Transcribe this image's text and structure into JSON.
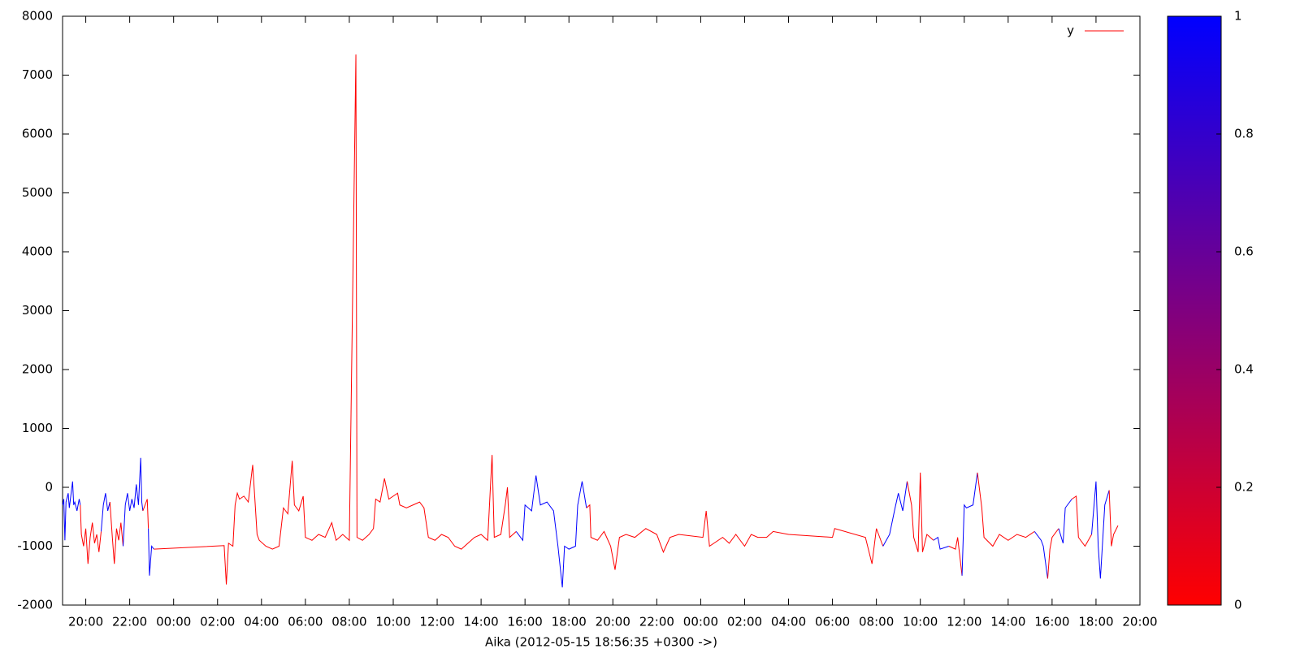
{
  "chart_data": {
    "type": "line",
    "xlabel": "Aika (2012-05-15 18:56:35 +0300 ->)",
    "xlim": [
      18.943,
      68.0
    ],
    "xticks": [
      {
        "value": 20,
        "label": "20:00"
      },
      {
        "value": 22,
        "label": "22:00"
      },
      {
        "value": 24,
        "label": "00:00"
      },
      {
        "value": 26,
        "label": "02:00"
      },
      {
        "value": 28,
        "label": "04:00"
      },
      {
        "value": 30,
        "label": "06:00"
      },
      {
        "value": 32,
        "label": "08:00"
      },
      {
        "value": 34,
        "label": "10:00"
      },
      {
        "value": 36,
        "label": "12:00"
      },
      {
        "value": 38,
        "label": "14:00"
      },
      {
        "value": 40,
        "label": "16:00"
      },
      {
        "value": 42,
        "label": "18:00"
      },
      {
        "value": 44,
        "label": "20:00"
      },
      {
        "value": 46,
        "label": "22:00"
      },
      {
        "value": 48,
        "label": "00:00"
      },
      {
        "value": 50,
        "label": "02:00"
      },
      {
        "value": 52,
        "label": "04:00"
      },
      {
        "value": 54,
        "label": "06:00"
      },
      {
        "value": 56,
        "label": "08:00"
      },
      {
        "value": 58,
        "label": "10:00"
      },
      {
        "value": 60,
        "label": "12:00"
      },
      {
        "value": 62,
        "label": "14:00"
      },
      {
        "value": 64,
        "label": "16:00"
      },
      {
        "value": 66,
        "label": "18:00"
      },
      {
        "value": 68,
        "label": "20:00"
      }
    ],
    "ylim": [
      -2000,
      8000
    ],
    "yticks": [
      -2000,
      -1000,
      0,
      1000,
      2000,
      3000,
      4000,
      5000,
      6000,
      7000,
      8000
    ],
    "cblim": [
      0,
      1
    ],
    "cbticks": [
      0,
      0.2,
      0.4,
      0.6,
      0.8,
      1
    ],
    "palette": [
      "#ff0000",
      "#0000ff"
    ],
    "legend": "top-right",
    "x": [
      18.95,
      19.0,
      19.05,
      19.1,
      19.2,
      19.25,
      19.3,
      19.4,
      19.45,
      19.5,
      19.6,
      19.7,
      19.75,
      19.8,
      19.9,
      20.0,
      20.1,
      20.2,
      20.3,
      20.4,
      20.5,
      20.6,
      20.7,
      20.8,
      20.9,
      21.0,
      21.1,
      21.2,
      21.3,
      21.4,
      21.5,
      21.6,
      21.7,
      21.8,
      21.9,
      22.0,
      22.1,
      22.2,
      22.3,
      22.4,
      22.5,
      22.55,
      22.6,
      22.7,
      22.8,
      22.85,
      22.9,
      23.0,
      23.1,
      26.3,
      26.4,
      26.5,
      26.7,
      26.8,
      26.9,
      27.0,
      27.2,
      27.4,
      27.6,
      27.7,
      27.8,
      27.9,
      28.2,
      28.5,
      28.8,
      29.0,
      29.2,
      29.4,
      29.5,
      29.7,
      29.9,
      30.0,
      30.3,
      30.6,
      30.9,
      31.2,
      31.4,
      31.7,
      32.0,
      32.3,
      32.35,
      32.6,
      32.9,
      33.1,
      33.2,
      33.4,
      33.6,
      33.8,
      34.0,
      34.2,
      34.3,
      34.6,
      34.9,
      35.2,
      35.4,
      35.6,
      35.9,
      36.2,
      36.5,
      36.8,
      37.1,
      37.4,
      37.7,
      38.0,
      38.3,
      38.5,
      38.6,
      38.9,
      39.1,
      39.2,
      39.3,
      39.6,
      39.9,
      40.0,
      40.3,
      40.5,
      40.7,
      41.0,
      41.3,
      41.5,
      41.7,
      41.8,
      42.0,
      42.3,
      42.4,
      42.6,
      42.8,
      42.95,
      43.0,
      43.3,
      43.6,
      43.9,
      44.1,
      44.3,
      44.6,
      45.0,
      45.5,
      46.0,
      46.3,
      46.6,
      47.0,
      48.1,
      48.25,
      48.4,
      49.0,
      49.3,
      49.6,
      50.0,
      50.3,
      50.6,
      51.0,
      51.3,
      52.0,
      54.0,
      54.1,
      55.5,
      55.8,
      56.0,
      56.3,
      56.6,
      56.85,
      57.0,
      57.2,
      57.4,
      57.6,
      57.7,
      57.9,
      58.0,
      58.1,
      58.3,
      58.6,
      58.8,
      58.9,
      59.3,
      59.6,
      59.7,
      59.9,
      60.0,
      60.1,
      60.4,
      60.6,
      60.8,
      60.9,
      61.3,
      61.6,
      62.0,
      62.4,
      62.8,
      63.2,
      63.5,
      63.6,
      63.8,
      63.9,
      64.0,
      64.3,
      64.5,
      64.6,
      64.9,
      65.1,
      65.2,
      65.5,
      65.8,
      66.0,
      66.1,
      66.2,
      66.4,
      66.6,
      66.7,
      66.8,
      67.0,
      67.2
    ],
    "series": [
      {
        "name": "y",
        "color": "#ff0000",
        "values": [
          -300,
          -200,
          -900,
          -250,
          -100,
          -350,
          -200,
          100,
          -300,
          -250,
          -400,
          -200,
          -300,
          -800,
          -1000,
          -700,
          -1300,
          -850,
          -600,
          -950,
          -800,
          -1100,
          -750,
          -300,
          -100,
          -400,
          -250,
          -800,
          -1300,
          -700,
          -900,
          -600,
          -1000,
          -300,
          -100,
          -400,
          -200,
          -350,
          50,
          -300,
          500,
          -250,
          -400,
          -300,
          -200,
          -700,
          -1500,
          -1000,
          -1050,
          -990,
          -1650,
          -950,
          -1000,
          -300,
          -100,
          -200,
          -150,
          -250,
          380,
          -200,
          -800,
          -900,
          -1000,
          -1050,
          -1000,
          -350,
          -450,
          450,
          -300,
          -400,
          -150,
          -850,
          -900,
          -800,
          -850,
          -600,
          -900,
          -800,
          -900,
          7350,
          -850,
          -900,
          -800,
          -700,
          -200,
          -250,
          150,
          -200,
          -150,
          -100,
          -300,
          -350,
          -300,
          -250,
          -350,
          -850,
          -900,
          -800,
          -850,
          -1000,
          -1050,
          -950,
          -850,
          -800,
          -900,
          550,
          -850,
          -800,
          -300,
          0,
          -850,
          -750,
          -900,
          -300,
          -400,
          200,
          -300,
          -250,
          -400,
          -1000,
          -1700,
          -1000,
          -1050,
          -1000,
          -300,
          100,
          -350,
          -300,
          -850,
          -900,
          -750,
          -1000,
          -1400,
          -850,
          -800,
          -850,
          -700,
          -800,
          -1100,
          -850,
          -800,
          -850,
          -400,
          -1000,
          -850,
          -950,
          -800,
          -1000,
          -800,
          -850,
          -850,
          -750,
          -800,
          -850,
          -700,
          -850,
          -1300,
          -700,
          -1000,
          -800,
          -350,
          -100,
          -400,
          100,
          -300,
          -850,
          -1100,
          250,
          -1100,
          -800,
          -900,
          -850,
          -1050,
          -1000,
          -1050,
          -850,
          -1500,
          -300,
          -350,
          -300,
          250,
          -350,
          -850,
          -1000,
          -800,
          -900,
          -800,
          -850,
          -750,
          -900,
          -1000,
          -1550,
          -1050,
          -850,
          -700,
          -950,
          -350,
          -200,
          -150,
          -850,
          -1000,
          -800,
          100,
          -1000,
          -1550,
          -300,
          -50,
          -1000,
          -800,
          -650,
          -750
        ],
        "cb": [
          1,
          1,
          1,
          1,
          1,
          1,
          1,
          1,
          1,
          1,
          1,
          1,
          1,
          0,
          0,
          0,
          0,
          0,
          0,
          0,
          0,
          0,
          0,
          1,
          1,
          1,
          1,
          0,
          0,
          0,
          0,
          0,
          0,
          1,
          1,
          1,
          1,
          1,
          1,
          1,
          1,
          1,
          1,
          0,
          0,
          0,
          1,
          1,
          1,
          0,
          0,
          0,
          0,
          0,
          0,
          0,
          0,
          0,
          0,
          0,
          0,
          0,
          0,
          0,
          0,
          0,
          0,
          0,
          0,
          0,
          0,
          0,
          0,
          0,
          0,
          0,
          0,
          0,
          0,
          0,
          0,
          0,
          0,
          0,
          0,
          0,
          0,
          0,
          0,
          0,
          0,
          0,
          0,
          0,
          0,
          0,
          0,
          0,
          0,
          0,
          0,
          0,
          0,
          0,
          0,
          0,
          0,
          0,
          0,
          0,
          0,
          0,
          1,
          1,
          1,
          1,
          1,
          1,
          1,
          1,
          1,
          1,
          1,
          1,
          1,
          1,
          1,
          0,
          0,
          0,
          0,
          0,
          0,
          0,
          0,
          0,
          0,
          0,
          0,
          0,
          0,
          0,
          0,
          0,
          0,
          0,
          0,
          0,
          0,
          0,
          0,
          0,
          0,
          0,
          0,
          0,
          0,
          0,
          0,
          1,
          1,
          1,
          1,
          1,
          0,
          0,
          0,
          0,
          0,
          0,
          0,
          1,
          1,
          1,
          0,
          0,
          0,
          1,
          1,
          1,
          1,
          0,
          0,
          0,
          0,
          0,
          0,
          0,
          0,
          1,
          1,
          1,
          0,
          0,
          0,
          1,
          1,
          1,
          0,
          0,
          0,
          0,
          1,
          1,
          1,
          1,
          1,
          0,
          0,
          0
        ]
      }
    ]
  }
}
